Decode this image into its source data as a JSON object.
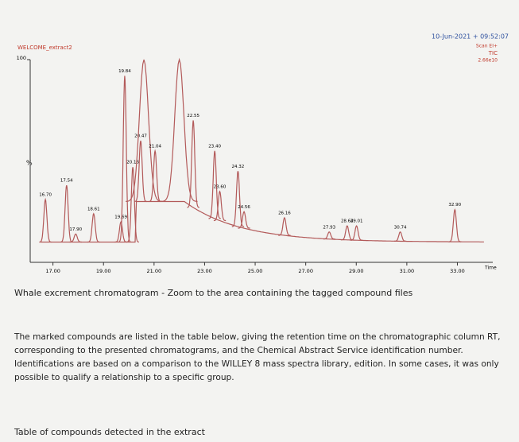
{
  "chart_data": {
    "type": "chromatogram",
    "title": "WELCOME_extract2",
    "header": [
      "10-Jun-2021 + 09:52:07",
      "Scan EI+",
      "TIC",
      "2.66e10"
    ],
    "x_label": "Time",
    "y_label": "%",
    "color": "#b35a5a",
    "x": [
      16.7,
      17.54,
      17.9,
      18.61,
      19.69,
      19.84,
      20.16,
      20.47,
      20.6,
      21.04,
      22.0,
      22.55,
      23.4,
      23.6,
      24.32,
      24.56,
      26.16,
      27.93,
      28.64,
      29.01,
      30.74,
      32.9
    ],
    "values": [
      31,
      38,
      14,
      24,
      20,
      92,
      47,
      60,
      100,
      55,
      100,
      70,
      55,
      35,
      45,
      25,
      22,
      15,
      18,
      18,
      15,
      26
    ],
    "value_labels": [
      "16.70",
      "17.54",
      "17.90",
      "18.61",
      "19.69",
      "19.84",
      "20.16",
      "20.47",
      null,
      "21.04",
      null,
      "22.55",
      "23.40",
      "23.60",
      "24.32",
      "24.56",
      "26.16",
      "27.93",
      "28.64",
      "29.01",
      "30.74",
      "32.90"
    ],
    "xlim": [
      16.1,
      34.4
    ],
    "ylim": [
      0,
      100
    ],
    "xticks": [
      {
        "value": 17,
        "label": "17.00"
      },
      {
        "value": 19,
        "label": "19.00"
      },
      {
        "value": 21,
        "label": "21.00"
      },
      {
        "value": 23,
        "label": "23.00"
      },
      {
        "value": 25,
        "label": "25.00"
      },
      {
        "value": 27,
        "label": "27.00"
      },
      {
        "value": 29,
        "label": "29.00"
      },
      {
        "value": 31,
        "label": "31.00"
      },
      {
        "value": 33,
        "label": "33.00"
      }
    ],
    "yticks": [
      100
    ]
  },
  "caption": "Whale excrement chromatogram - Zoom to the area containing the tagged compound files",
  "paragraph": "The marked compounds are listed in the table below, giving the retention time on the chromatographic column RT, corresponding to the presented chromatograms, and the Chemical Abstract Service identification number. Identifications are based on a comparison to the WILLEY 8 mass spectra library, edition. In some cases, it was only possible to qualify a relationship to a specific group.",
  "table_heading": "Table of compounds detected in the extract"
}
